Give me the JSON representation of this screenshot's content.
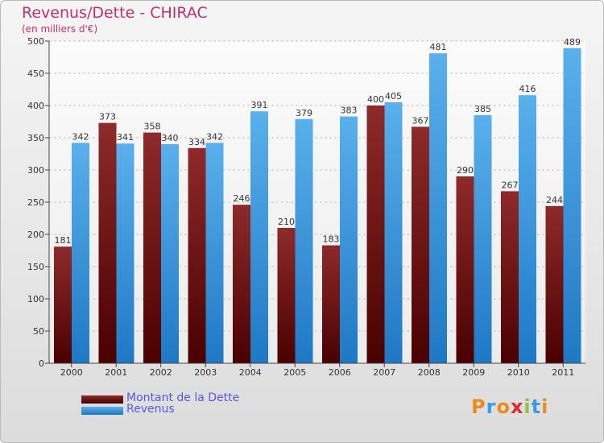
{
  "chart_data": {
    "type": "bar",
    "title": "Revenus/Dette - CHIRAC",
    "subtitle": "(en milliers d'€)",
    "categories": [
      "2000",
      "2001",
      "2002",
      "2003",
      "2004",
      "2005",
      "2006",
      "2007",
      "2008",
      "2009",
      "2010",
      "2011"
    ],
    "series": [
      {
        "name": "Montant de la Dette",
        "color": "#8b1a1a",
        "values": [
          181,
          373,
          358,
          334,
          246,
          210,
          183,
          400,
          367,
          290,
          267,
          244
        ]
      },
      {
        "name": "Revenus",
        "color": "#3a9be3",
        "values": [
          342,
          341,
          340,
          342,
          391,
          379,
          383,
          405,
          481,
          385,
          416,
          489
        ]
      }
    ],
    "ylim": [
      0,
      500
    ],
    "yticks": [
      0,
      50,
      100,
      150,
      200,
      250,
      300,
      350,
      400,
      450,
      500
    ],
    "grid": true,
    "legend": "bottom-left"
  },
  "logo": {
    "letters": [
      "P",
      "r",
      "o",
      "x",
      "i",
      "t",
      "i"
    ]
  }
}
